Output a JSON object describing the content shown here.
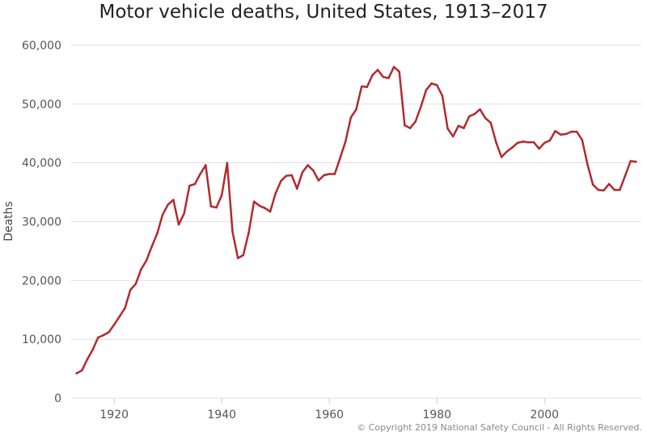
{
  "credit": "© Copyright 2019 National Safety Council - All Rights Reserved.",
  "colors": {
    "line": "#b22a2e",
    "grid": "#e1e1e1",
    "axis_text": "#555555"
  },
  "chart_data": {
    "type": "line",
    "title": "Motor vehicle deaths, United States, 1913–2017",
    "xlabel": "",
    "ylabel": "Deaths",
    "xlim": [
      1912,
      2018
    ],
    "ylim": [
      0,
      60000
    ],
    "grid": true,
    "legend": "none",
    "x_ticks": [
      1920,
      1940,
      1960,
      1980,
      2000
    ],
    "x_tick_labels": [
      "1920",
      "1940",
      "1960",
      "1980",
      "2000"
    ],
    "y_ticks": [
      0,
      10000,
      20000,
      30000,
      40000,
      50000,
      60000
    ],
    "y_tick_labels": [
      "0",
      "10,000",
      "20,000",
      "30,000",
      "40,000",
      "50,000",
      "60,000"
    ],
    "series": [
      {
        "name": "",
        "x": [
          1913,
          1914,
          1915,
          1916,
          1917,
          1918,
          1919,
          1920,
          1921,
          1922,
          1923,
          1924,
          1925,
          1926,
          1927,
          1928,
          1929,
          1930,
          1931,
          1932,
          1933,
          1934,
          1935,
          1936,
          1937,
          1938,
          1939,
          1940,
          1941,
          1942,
          1943,
          1944,
          1945,
          1946,
          1947,
          1948,
          1949,
          1950,
          1951,
          1952,
          1953,
          1954,
          1955,
          1956,
          1957,
          1958,
          1959,
          1960,
          1961,
          1962,
          1963,
          1964,
          1965,
          1966,
          1967,
          1968,
          1969,
          1970,
          1971,
          1972,
          1973,
          1974,
          1975,
          1976,
          1977,
          1978,
          1979,
          1980,
          1981,
          1982,
          1983,
          1984,
          1985,
          1986,
          1987,
          1988,
          1989,
          1990,
          1991,
          1992,
          1993,
          1994,
          1995,
          1996,
          1997,
          1998,
          1999,
          2000,
          2001,
          2002,
          2003,
          2004,
          2005,
          2006,
          2007,
          2008,
          2009,
          2010,
          2011,
          2012,
          2013,
          2014,
          2015,
          2016,
          2017
        ],
        "y": [
          4200,
          4700,
          6600,
          8200,
          10300,
          10700,
          11200,
          12500,
          13900,
          15300,
          18400,
          19400,
          21900,
          23400,
          25800,
          28000,
          31200,
          32900,
          33700,
          29500,
          31400,
          36100,
          36400,
          38100,
          39600,
          32600,
          32400,
          34500,
          39969,
          28300,
          23800,
          24300,
          28100,
          33400,
          32700,
          32300,
          31700,
          34800,
          36900,
          37800,
          37900,
          35600,
          38400,
          39600,
          38700,
          37000,
          37900,
          38100,
          38100,
          40800,
          43600,
          47700,
          49100,
          53000,
          52900,
          54900,
          55800,
          54600,
          54400,
          56300,
          55500,
          46400,
          45900,
          47000,
          49500,
          52400,
          53500,
          53200,
          51400,
          45800,
          44500,
          46300,
          45900,
          47900,
          48300,
          49100,
          47600,
          46800,
          43500,
          40980,
          41900,
          42600,
          43400,
          43600,
          43500,
          43500,
          42400,
          43400,
          43800,
          45400,
          44800,
          44900,
          45300,
          45300,
          43900,
          39700,
          36300,
          35400,
          35300,
          36400,
          35400,
          35400,
          37800,
          40300,
          40200
        ]
      }
    ]
  }
}
